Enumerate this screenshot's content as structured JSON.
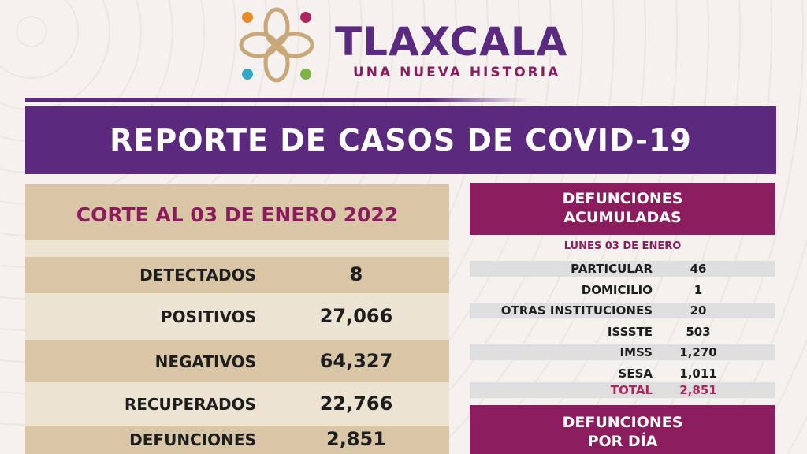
{
  "header": {
    "title": "TLAXCALA",
    "subtitle": "UNA NUEVA HISTORIA"
  },
  "banner": "REPORTE DE CASOS DE COVID-19",
  "summary": {
    "heading": "CORTE AL 03 DE ENERO 2022",
    "rows": [
      [
        "DETECTADOS",
        "8"
      ],
      [
        "POSITIVOS",
        "27,066"
      ],
      [
        "NEGATIVOS",
        "64,327"
      ],
      [
        "RECUPERADOS",
        "22,766"
      ],
      [
        "DEFUNCIONES",
        "2,851"
      ]
    ]
  },
  "deaths": {
    "heading": [
      "DEFUNCIONES",
      "ACUMULADAS"
    ],
    "date": "LUNES 03 DE ENERO",
    "rows": [
      [
        "PARTICULAR",
        "46"
      ],
      [
        "DOMICILIO",
        "1"
      ],
      [
        "OTRAS INSTITUCIONES",
        "20"
      ],
      [
        "ISSSTE",
        "503"
      ],
      [
        "IMSS",
        "1,270"
      ],
      [
        "SESA",
        "1,011"
      ]
    ],
    "total": [
      "TOTAL",
      "2,851"
    ]
  },
  "daily": {
    "heading": [
      "DEFUNCIONES",
      "POR DÍA"
    ]
  }
}
